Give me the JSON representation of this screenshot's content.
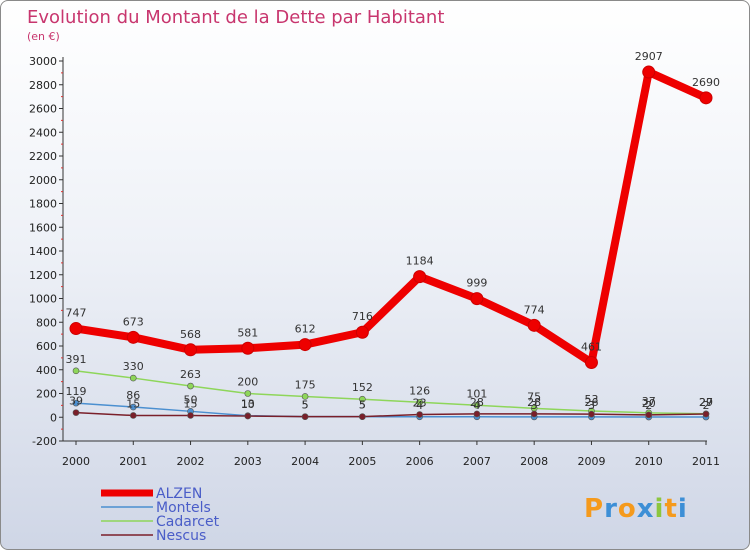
{
  "chart_data": {
    "type": "line",
    "title": "Evolution du Montant de la Dette par Habitant",
    "ylabel": "(en €)",
    "xlabel": "",
    "categories": [
      "2000",
      "2001",
      "2002",
      "2003",
      "2004",
      "2005",
      "2006",
      "2007",
      "2008",
      "2009",
      "2010",
      "2011"
    ],
    "ylim": [
      -200,
      3000
    ],
    "yticks": [
      -200,
      0,
      200,
      400,
      600,
      800,
      1000,
      1200,
      1400,
      1600,
      1800,
      2000,
      2200,
      2400,
      2600,
      2800,
      3000
    ],
    "grid": false,
    "legend": "bottom-left",
    "series": [
      {
        "name": "ALZEN",
        "color": "#ee0000",
        "values": [
          747,
          673,
          568,
          581,
          612,
          716,
          1184,
          999,
          774,
          461,
          2907,
          2690
        ]
      },
      {
        "name": "Montels",
        "color": "#4b8fd0",
        "values": [
          119,
          86,
          50,
          13,
          5,
          5,
          4,
          4,
          3,
          3,
          2,
          2
        ]
      },
      {
        "name": "Cadarcet",
        "color": "#8ed65a",
        "values": [
          391,
          330,
          263,
          200,
          175,
          152,
          126,
          101,
          75,
          53,
          37,
          29
        ]
      },
      {
        "name": "Nescus",
        "color": "#7a1f2a",
        "values": [
          39,
          15,
          15,
          10,
          5,
          5,
          23,
          28,
          28,
          26,
          20,
          27
        ]
      }
    ]
  },
  "brand": {
    "text": "Proxiti",
    "letters": [
      "P",
      "r",
      "o",
      "x",
      "i",
      "t",
      "i"
    ],
    "colors": [
      "#f59a1c",
      "#3d8fd6",
      "#f59a1c",
      "#3d8fd6",
      "#8cc63f",
      "#f59a1c",
      "#3d8fd6"
    ]
  }
}
